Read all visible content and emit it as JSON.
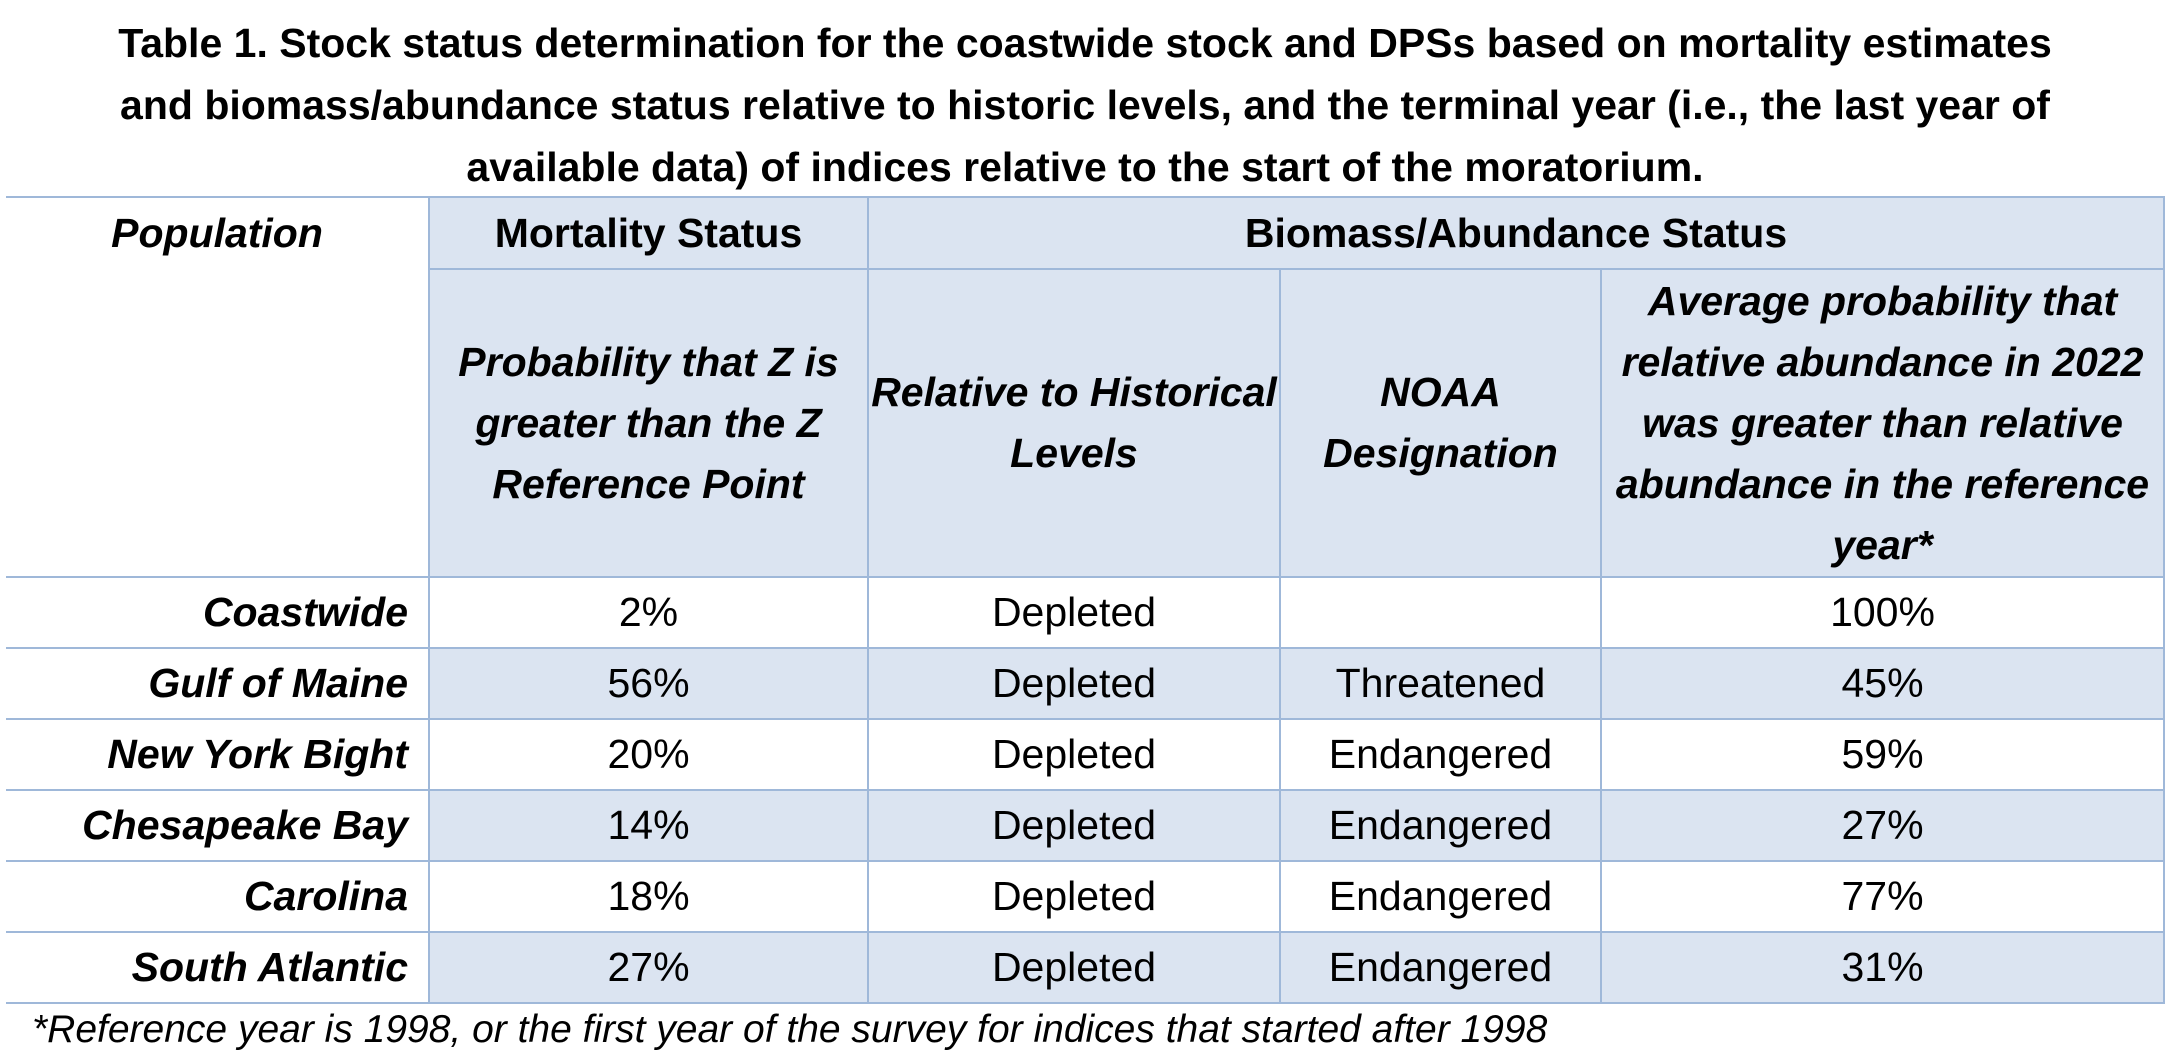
{
  "caption": {
    "line1": "Table 1. Stock status determination for the coastwide stock and DPSs based on mortality estimates",
    "line2": "and biomass/abundance status relative to historic levels, and the terminal year (i.e., the last year of",
    "line3": "available data) of indices relative to the start of the moratorium."
  },
  "table": {
    "group_headers": {
      "population": "Population",
      "mortality": "Mortality Status",
      "biomass": "Biomass/Abundance Status"
    },
    "sub_headers": {
      "prob_z": "Probability that Z is greater than the Z Reference Point",
      "relative_hist": "Relative to Historical Levels",
      "noaa": "NOAA Designation",
      "avg_prob": "Average probability that relative abundance in 2022 was greater than relative abundance in the reference year*"
    },
    "rows": [
      {
        "population": "Coastwide",
        "mortality": "2%",
        "relative": "Depleted",
        "noaa": "",
        "probability": "100%"
      },
      {
        "population": "Gulf of Maine",
        "mortality": "56%",
        "relative": "Depleted",
        "noaa": "Threatened",
        "probability": "45%"
      },
      {
        "population": "New York Bight",
        "mortality": "20%",
        "relative": "Depleted",
        "noaa": "Endangered",
        "probability": "59%"
      },
      {
        "population": "Chesapeake Bay",
        "mortality": "14%",
        "relative": "Depleted",
        "noaa": "Endangered",
        "probability": "27%"
      },
      {
        "population": "Carolina",
        "mortality": "18%",
        "relative": "Depleted",
        "noaa": "Endangered",
        "probability": "77%"
      },
      {
        "population": "South Atlantic",
        "mortality": "27%",
        "relative": "Depleted",
        "noaa": "Endangered",
        "probability": "31%"
      }
    ]
  },
  "footnote": "*Reference year is 1998, or the first year of the survey for indices that started after 1998",
  "colors": {
    "shade": "#dbe4f1",
    "border": "#9fb8d9"
  }
}
